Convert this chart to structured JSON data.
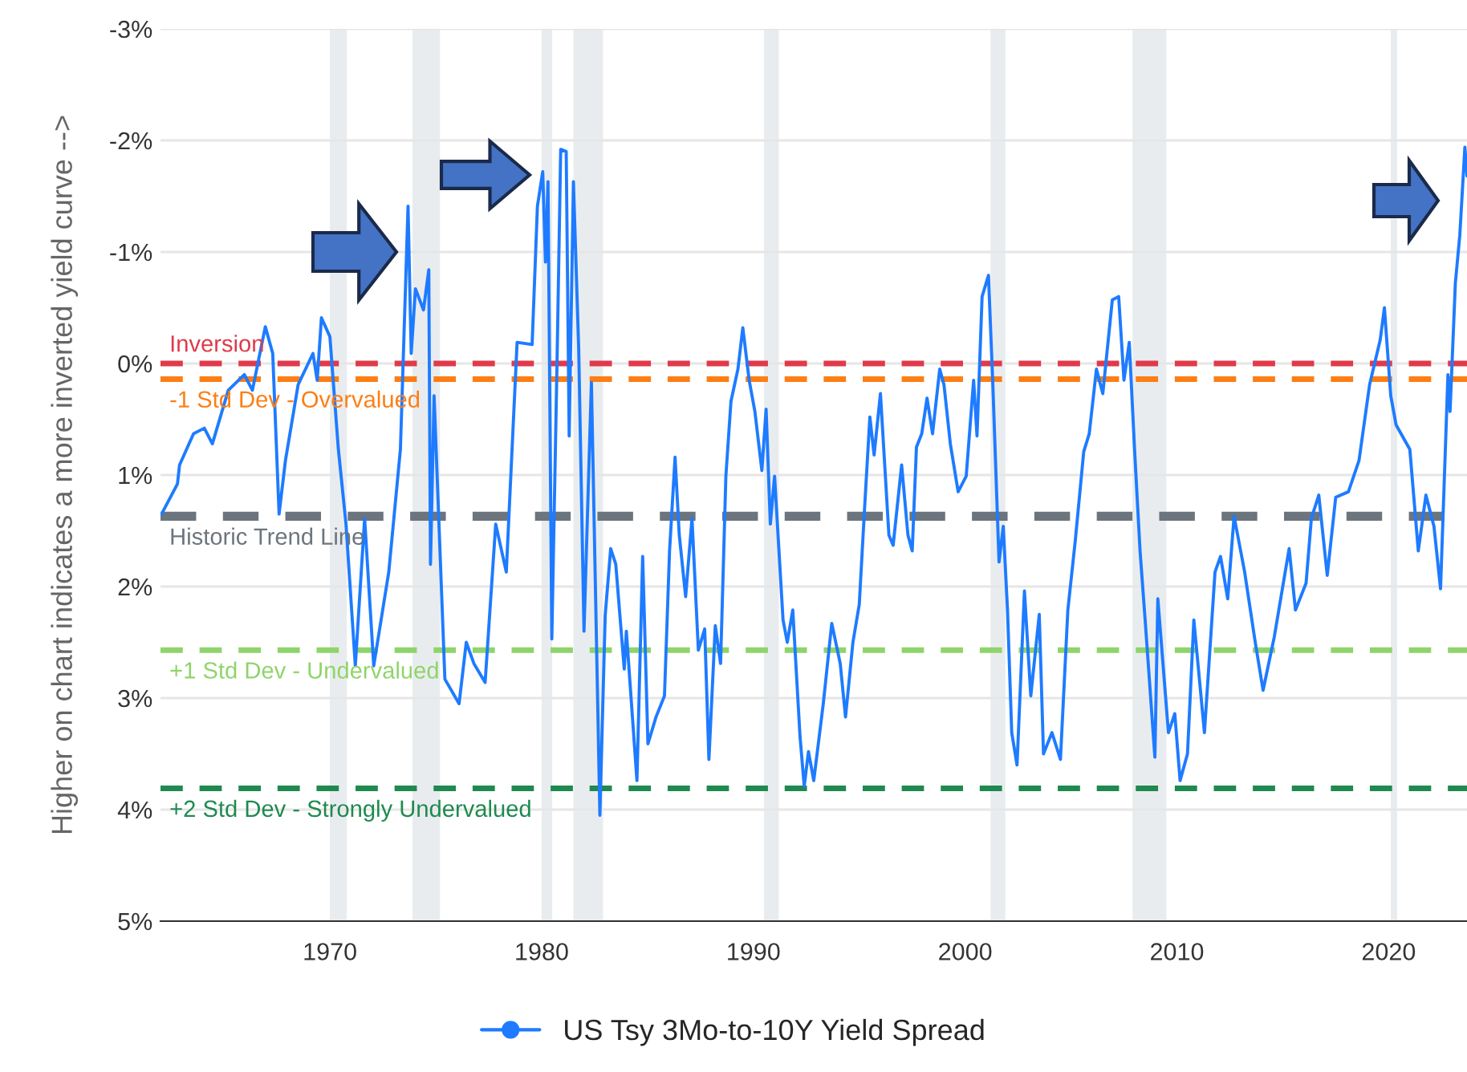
{
  "chart_data": {
    "type": "line",
    "ylabel": "Higher on chart indicates a more inverted yield curve -->",
    "xlim": [
      1962.0,
      2023.7
    ],
    "xticks": [
      1970,
      1980,
      1990,
      2000,
      2010,
      2020
    ],
    "ylim": [
      5,
      -3
    ],
    "yticks": [
      {
        "value": -3,
        "label": "-3%"
      },
      {
        "value": -2,
        "label": "-2%"
      },
      {
        "value": -1,
        "label": "-1%"
      },
      {
        "value": 0,
        "label": "0%"
      },
      {
        "value": 1,
        "label": "1%"
      },
      {
        "value": 2,
        "label": "2%"
      },
      {
        "value": 3,
        "label": "3%"
      },
      {
        "value": 4,
        "label": "4%"
      },
      {
        "value": 5,
        "label": "5%"
      }
    ],
    "grid": "y",
    "legend": "bottom",
    "ref_lines": [
      {
        "axis": "y",
        "value": 0,
        "label": "Inversion",
        "color": "#e03a4a",
        "line_style": "dashed"
      },
      {
        "axis": "y",
        "value": 0.14,
        "label": "-1 Std Dev - Overvalued",
        "color": "#fd7e14",
        "line_style": "dashed"
      },
      {
        "axis": "y",
        "value": 1.37,
        "label": "Historic Trend Line",
        "color": "#6c757d",
        "line_style": "dashed"
      },
      {
        "axis": "y",
        "value": 2.57,
        "label": "+1 Std Dev - Undervalued",
        "color": "#8fd46a",
        "line_style": "dashed"
      },
      {
        "axis": "y",
        "value": 3.81,
        "label": "+2 Std Dev - Strongly Undervalued",
        "color": "#1e8a4f",
        "line_style": "dashed"
      }
    ],
    "bands": [
      {
        "axis": "x",
        "from": 1970.0,
        "to": 1970.8,
        "color": "#e9ecef"
      },
      {
        "axis": "x",
        "from": 1973.9,
        "to": 1975.2,
        "color": "#e9ecef"
      },
      {
        "axis": "x",
        "from": 1980.0,
        "to": 1980.5,
        "color": "#e9ecef"
      },
      {
        "axis": "x",
        "from": 1981.5,
        "to": 1982.9,
        "color": "#e9ecef"
      },
      {
        "axis": "x",
        "from": 1990.5,
        "to": 1991.2,
        "color": "#e9ecef"
      },
      {
        "axis": "x",
        "from": 2001.2,
        "to": 2001.9,
        "color": "#e9ecef"
      },
      {
        "axis": "x",
        "from": 2007.9,
        "to": 2009.5,
        "color": "#e9ecef"
      },
      {
        "axis": "x",
        "from": 2020.1,
        "to": 2020.4,
        "color": "#e9ecef"
      }
    ],
    "series": [
      {
        "name": "US Tsy 3Mo-to-10Y Yield Spread",
        "color": "#1e7bff",
        "x": [
          1962.05,
          1962.8,
          1962.9,
          1963.56,
          1964.07,
          1964.45,
          1965.2,
          1965.96,
          1966.34,
          1966.95,
          1967.3,
          1967.6,
          1967.9,
          1968.5,
          1969.2,
          1969.4,
          1969.6,
          1970.0,
          1970.4,
          1970.76,
          1971.2,
          1971.64,
          1972.07,
          1972.78,
          1973.33,
          1973.69,
          1973.84,
          1974.04,
          1974.42,
          1974.67,
          1974.75,
          1974.92,
          1975.43,
          1976.1,
          1976.44,
          1976.8,
          1977.33,
          1977.83,
          1978.33,
          1978.84,
          1979.55,
          1979.8,
          1980.05,
          1980.18,
          1980.3,
          1980.48,
          1980.73,
          1980.9,
          1981.16,
          1981.3,
          1981.5,
          1981.75,
          1982.0,
          1982.35,
          1982.75,
          1983.0,
          1983.26,
          1983.5,
          1983.9,
          1984.0,
          1984.5,
          1984.77,
          1985.02,
          1985.4,
          1985.8,
          1986.04,
          1986.3,
          1986.5,
          1986.8,
          1987.1,
          1987.4,
          1987.7,
          1987.9,
          1988.2,
          1988.45,
          1988.7,
          1988.94,
          1989.27,
          1989.5,
          1989.8,
          1990.07,
          1990.4,
          1990.6,
          1990.8,
          1991.0,
          1991.4,
          1991.6,
          1991.86,
          1992.2,
          1992.4,
          1992.6,
          1992.85,
          1993.3,
          1993.7,
          1994.1,
          1994.35,
          1994.7,
          1995.0,
          1995.25,
          1995.5,
          1995.7,
          1996.0,
          1996.4,
          1996.6,
          1997.0,
          1997.3,
          1997.5,
          1997.7,
          1997.95,
          1998.2,
          1998.46,
          1998.8,
          1999.0,
          1999.3,
          1999.67,
          2000.05,
          2000.4,
          2000.56,
          2000.8,
          2001.1,
          2001.3,
          2001.6,
          2001.8,
          2002.0,
          2002.2,
          2002.45,
          2002.8,
          2003.1,
          2003.5,
          2003.7,
          2004.1,
          2004.5,
          2004.85,
          2005.2,
          2005.6,
          2005.86,
          2006.2,
          2006.5,
          2006.95,
          2007.25,
          2007.5,
          2007.75,
          2008.0,
          2008.26,
          2008.5,
          2008.96,
          2009.1,
          2009.6,
          2009.9,
          2010.15,
          2010.5,
          2010.8,
          2011.3,
          2011.8,
          2012.06,
          2012.4,
          2012.7,
          2013.2,
          2013.7,
          2014.07,
          2014.6,
          2015.3,
          2015.6,
          2016.1,
          2016.35,
          2016.7,
          2017.1,
          2017.5,
          2018.1,
          2018.6,
          2019.1,
          2019.6,
          2019.8,
          2020.1,
          2020.35,
          2021.0,
          2021.4,
          2021.76,
          2022.14,
          2022.45,
          2022.8,
          2022.9,
          2023.15,
          2023.36,
          2023.6,
          2023.7
        ],
        "values": [
          1.35,
          1.08,
          0.91,
          0.63,
          0.58,
          0.72,
          0.24,
          0.1,
          0.24,
          -0.33,
          -0.09,
          1.35,
          0.87,
          0.19,
          -0.09,
          0.15,
          -0.41,
          -0.24,
          0.77,
          1.44,
          2.71,
          1.39,
          2.71,
          1.87,
          0.77,
          -1.41,
          -0.09,
          -0.67,
          -0.48,
          -0.84,
          1.8,
          0.29,
          2.83,
          3.05,
          2.5,
          2.69,
          2.86,
          1.44,
          1.87,
          -0.19,
          -0.17,
          -1.41,
          -1.72,
          -0.91,
          -1.63,
          2.47,
          -0.05,
          -1.92,
          -1.9,
          0.65,
          -1.63,
          -0.13,
          2.4,
          0.17,
          4.05,
          2.26,
          1.66,
          1.8,
          2.74,
          2.4,
          3.74,
          1.73,
          3.41,
          3.17,
          2.98,
          1.68,
          0.84,
          1.54,
          2.09,
          1.39,
          2.57,
          2.38,
          3.55,
          2.35,
          2.69,
          1.01,
          0.34,
          0.05,
          -0.32,
          0.15,
          0.43,
          0.96,
          0.41,
          1.44,
          1.01,
          2.3,
          2.5,
          2.21,
          3.34,
          3.79,
          3.48,
          3.74,
          3.05,
          2.33,
          2.69,
          3.17,
          2.5,
          2.16,
          1.3,
          0.48,
          0.82,
          0.27,
          1.54,
          1.63,
          0.91,
          1.54,
          1.68,
          0.75,
          0.63,
          0.31,
          0.63,
          0.05,
          0.19,
          0.72,
          1.15,
          1.01,
          0.15,
          0.65,
          -0.6,
          -0.79,
          0.15,
          1.78,
          1.46,
          2.21,
          3.31,
          3.6,
          2.04,
          2.98,
          2.25,
          3.5,
          3.31,
          3.55,
          2.21,
          1.59,
          0.79,
          0.63,
          0.05,
          0.27,
          -0.57,
          -0.6,
          0.15,
          -0.19,
          0.77,
          1.68,
          2.3,
          3.53,
          2.11,
          3.31,
          3.14,
          3.74,
          3.5,
          2.3,
          3.31,
          1.87,
          1.73,
          2.11,
          1.37,
          1.87,
          2.5,
          2.93,
          2.45,
          1.66,
          2.21,
          1.97,
          1.39,
          1.18,
          1.9,
          1.2,
          1.15,
          0.87,
          0.19,
          -0.21,
          -0.5,
          0.29,
          0.55,
          0.77,
          1.68,
          1.18,
          1.46,
          2.02,
          0.1,
          0.43,
          -0.72,
          -1.15,
          -1.94,
          -1.68
        ]
      }
    ]
  }
}
